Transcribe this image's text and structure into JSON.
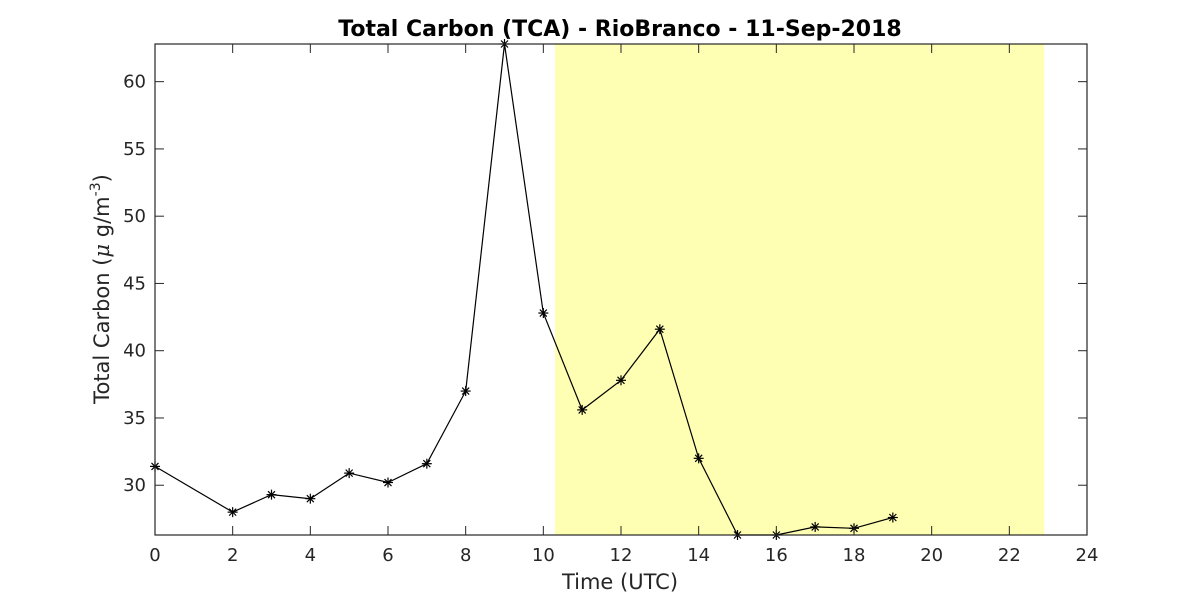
{
  "chart_data": {
    "type": "line",
    "title": "Total Carbon (TCA) - RioBranco - 11-Sep-2018",
    "xlabel": "Time (UTC)",
    "ylabel_main": "Total Carbon (",
    "ylabel_mu": "μ",
    "ylabel_unit": " g/m",
    "ylabel_sup": "-3",
    "ylabel_close": ")",
    "xlim": [
      0,
      24
    ],
    "ylim": [
      26.3,
      62.8
    ],
    "xticks": [
      0,
      2,
      4,
      6,
      8,
      10,
      12,
      14,
      16,
      18,
      20,
      22,
      24
    ],
    "yticks": [
      30,
      35,
      40,
      45,
      50,
      55,
      60
    ],
    "grid": false,
    "marker": "asterisk",
    "line_color": "#000000",
    "highlight_region": {
      "x_start": 10.3,
      "x_end": 22.9,
      "color": "#ffffb3"
    },
    "series": [
      {
        "x": [
          0,
          2,
          3,
          4,
          5,
          6,
          7,
          8,
          9,
          10,
          11,
          12,
          13,
          14,
          15,
          16,
          17,
          18,
          19
        ],
        "values": [
          31.4,
          28.0,
          29.3,
          29.0,
          30.9,
          30.2,
          31.6,
          37.0,
          62.8,
          42.8,
          35.6,
          37.8,
          41.6,
          32.0,
          26.3,
          26.3,
          26.9,
          26.8,
          27.6
        ]
      }
    ]
  }
}
